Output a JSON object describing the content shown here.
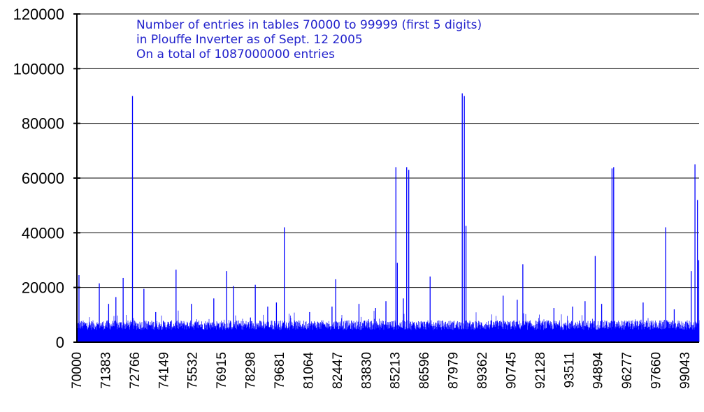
{
  "colors": {
    "series": "#0000ff",
    "annotation": "#2222cc",
    "grid": "#000000",
    "axis": "#000000"
  },
  "chart_data": {
    "type": "bar",
    "annotation": [
      "Number of entries in tables 70000 to 99999 (first 5 digits)",
      "in Plouffe Inverter as of Sept. 12 2005",
      "On a total of 1087000000 entries"
    ],
    "x_range": [
      70000,
      99999
    ],
    "ylim": [
      0,
      120000
    ],
    "y_ticks": [
      0,
      20000,
      40000,
      60000,
      80000,
      100000,
      120000
    ],
    "x_tick_labels": [
      "70000",
      "71383",
      "72766",
      "74149",
      "75532",
      "76915",
      "78298",
      "79681",
      "81064",
      "82447",
      "83830",
      "85213",
      "86596",
      "87979",
      "89362",
      "90745",
      "92128",
      "93511",
      "94894",
      "96277",
      "97660",
      "99043"
    ],
    "grid": "horizontal",
    "baseline_band": [
      4500,
      8000
    ],
    "spikes": [
      {
        "x": 70100,
        "y": 24500
      },
      {
        "x": 71080,
        "y": 21500
      },
      {
        "x": 71530,
        "y": 14000
      },
      {
        "x": 71880,
        "y": 16500
      },
      {
        "x": 72230,
        "y": 23500
      },
      {
        "x": 72680,
        "y": 90000
      },
      {
        "x": 73230,
        "y": 19500
      },
      {
        "x": 73800,
        "y": 11000
      },
      {
        "x": 74780,
        "y": 26500
      },
      {
        "x": 75520,
        "y": 14000
      },
      {
        "x": 76600,
        "y": 16000
      },
      {
        "x": 77220,
        "y": 26000
      },
      {
        "x": 77550,
        "y": 20500
      },
      {
        "x": 78600,
        "y": 21000
      },
      {
        "x": 79200,
        "y": 13000
      },
      {
        "x": 79620,
        "y": 14500
      },
      {
        "x": 80000,
        "y": 42000
      },
      {
        "x": 81220,
        "y": 11000
      },
      {
        "x": 82300,
        "y": 13000
      },
      {
        "x": 82480,
        "y": 23000
      },
      {
        "x": 83600,
        "y": 14000
      },
      {
        "x": 84400,
        "y": 12500
      },
      {
        "x": 84900,
        "y": 15000
      },
      {
        "x": 85380,
        "y": 64000
      },
      {
        "x": 85450,
        "y": 29000
      },
      {
        "x": 85740,
        "y": 16000
      },
      {
        "x": 85900,
        "y": 64000
      },
      {
        "x": 86000,
        "y": 63000
      },
      {
        "x": 87030,
        "y": 24000
      },
      {
        "x": 88580,
        "y": 91000
      },
      {
        "x": 88680,
        "y": 90000
      },
      {
        "x": 88760,
        "y": 42500
      },
      {
        "x": 90550,
        "y": 17000
      },
      {
        "x": 91230,
        "y": 15500
      },
      {
        "x": 91500,
        "y": 28500
      },
      {
        "x": 93000,
        "y": 12500
      },
      {
        "x": 93900,
        "y": 13000
      },
      {
        "x": 94500,
        "y": 15000
      },
      {
        "x": 94990,
        "y": 31500
      },
      {
        "x": 95300,
        "y": 14000
      },
      {
        "x": 95800,
        "y": 63500
      },
      {
        "x": 95880,
        "y": 64000
      },
      {
        "x": 97300,
        "y": 14500
      },
      {
        "x": 98390,
        "y": 42000
      },
      {
        "x": 98800,
        "y": 12000
      },
      {
        "x": 99620,
        "y": 26000
      },
      {
        "x": 99800,
        "y": 65000
      },
      {
        "x": 99920,
        "y": 52000
      },
      {
        "x": 99980,
        "y": 30000
      }
    ]
  }
}
